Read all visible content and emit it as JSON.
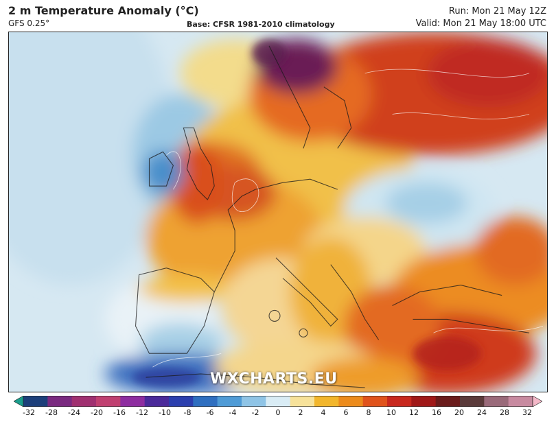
{
  "header": {
    "title": "2 m Temperature Anomaly (°C)",
    "subtitle": "GFS 0.25°",
    "base": "Base: CFSR 1981-2010 climatology",
    "run": "Run: Mon 21 May 12Z",
    "valid": "Valid: Mon 21 May 18:00 UTC"
  },
  "watermark": "WXCHARTS.EU",
  "legend": {
    "ticks": [
      "-32",
      "-28",
      "-24",
      "-20",
      "-16",
      "-12",
      "-10",
      "-8",
      "-6",
      "-4",
      "-2",
      "0",
      "2",
      "4",
      "6",
      "8",
      "10",
      "12",
      "16",
      "20",
      "24",
      "28",
      "32"
    ],
    "colors": [
      "#1a9e8c",
      "#1c3f7a",
      "#7a2a80",
      "#a03070",
      "#c04070",
      "#8e2da0",
      "#4b2a9a",
      "#2c3fae",
      "#2f6fc0",
      "#4f9bd6",
      "#8fc4e6",
      "#d9ecf5",
      "#f7e29a",
      "#f2b62c",
      "#ec8b1c",
      "#e0531c",
      "#c8281e",
      "#a01818",
      "#6a1b1b",
      "#5a3a3a",
      "#9a6a7a",
      "#c88aa0",
      "#f4b8c8"
    ]
  },
  "map": {
    "icons": [
      "map-land-icon",
      "map-sea-icon"
    ]
  }
}
